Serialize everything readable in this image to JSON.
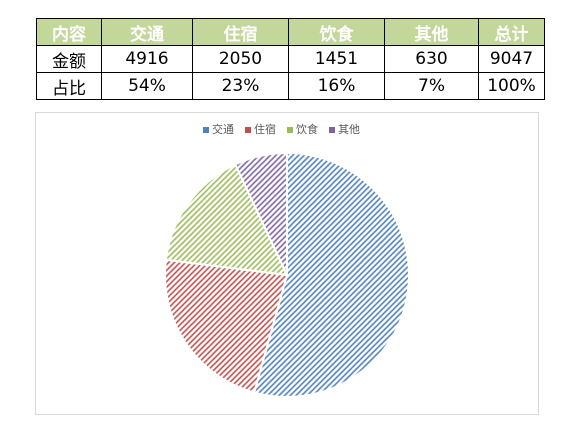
{
  "table": {
    "header": [
      "内容",
      "交通",
      "住宿",
      "饮食",
      "其他",
      "总计"
    ],
    "rows": [
      [
        "金额",
        4916,
        2050,
        1451,
        630,
        9047
      ],
      [
        "占比",
        "54%",
        "23%",
        "16%",
        "7%",
        "100%"
      ]
    ]
  },
  "chart_data": {
    "type": "pie",
    "categories": [
      "交通",
      "住宿",
      "饮食",
      "其他"
    ],
    "values": [
      4916,
      2050,
      1451,
      630
    ],
    "colors": [
      "#4f81bd",
      "#c0504d",
      "#9bbb59",
      "#8064a2"
    ],
    "legend": "top"
  }
}
